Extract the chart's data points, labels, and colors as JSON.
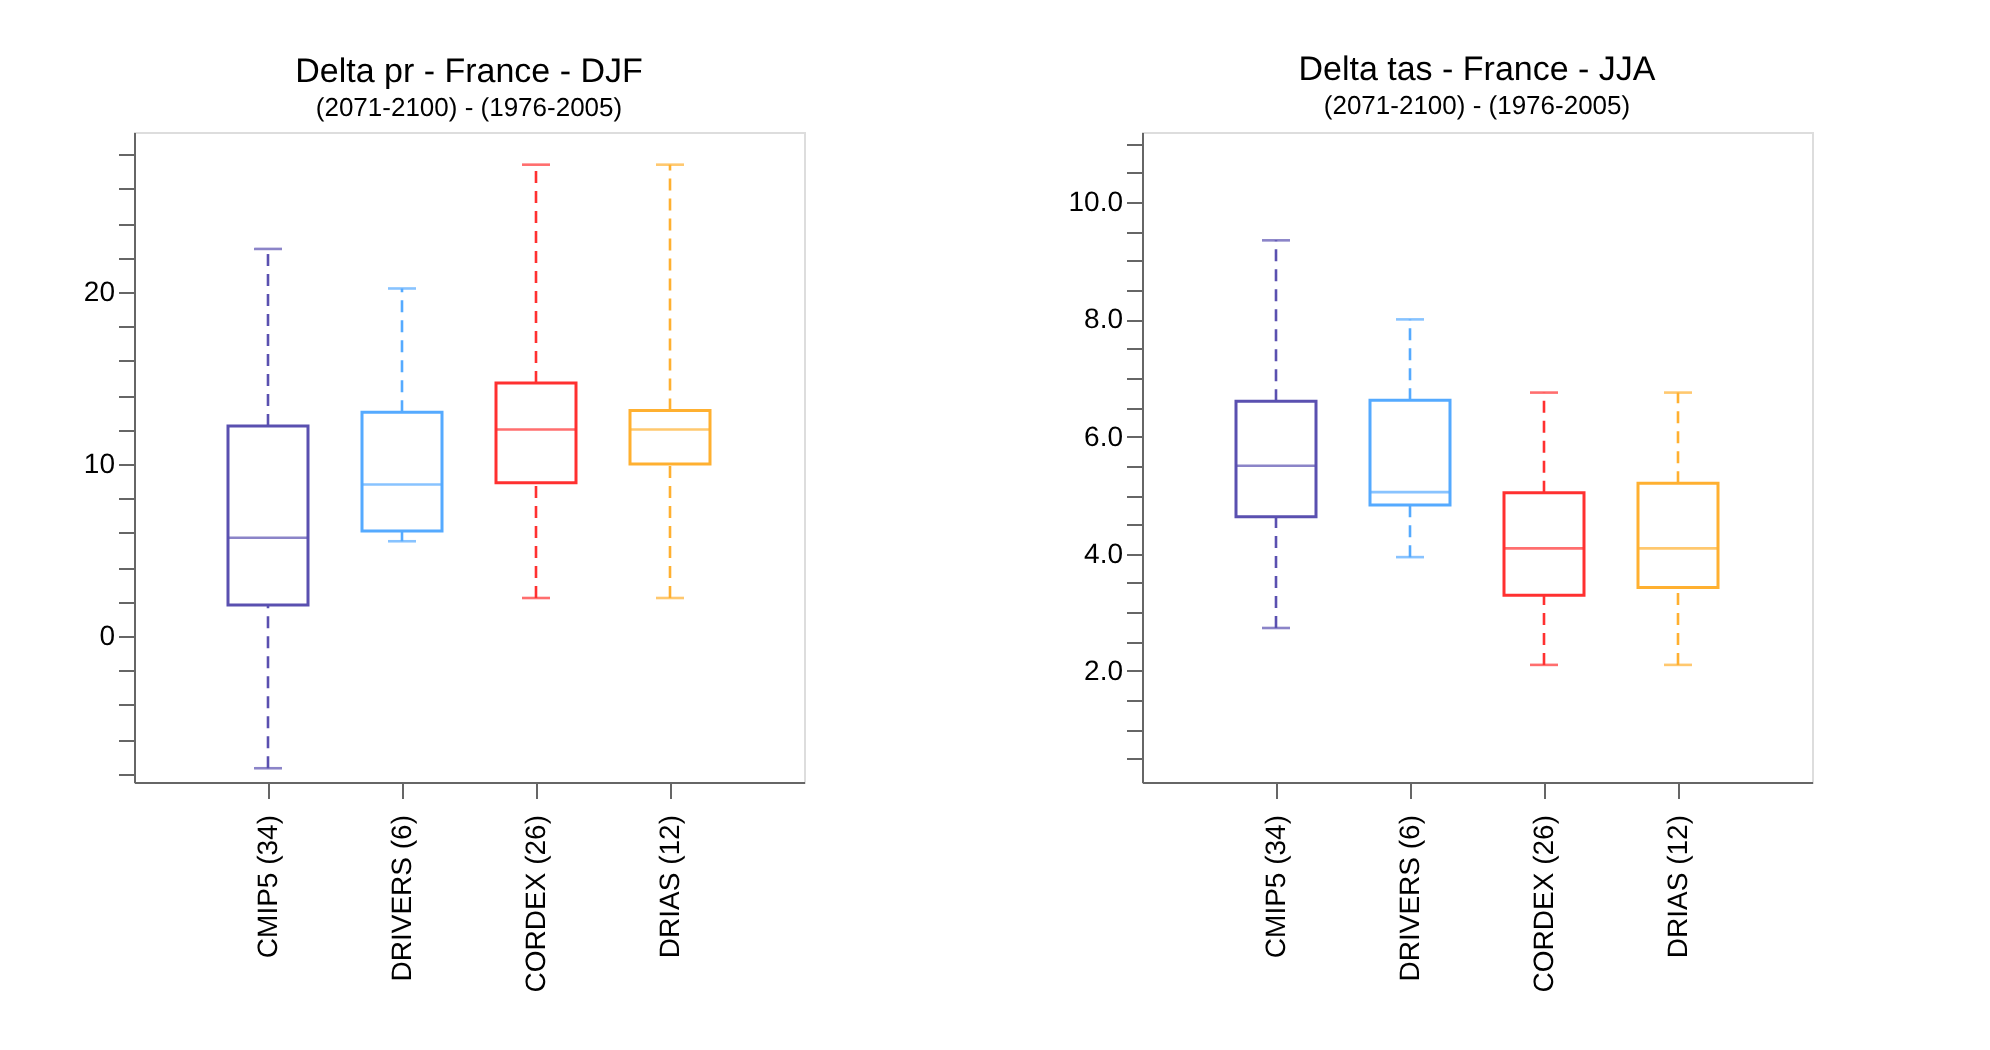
{
  "chart_data": [
    {
      "type": "box",
      "title": "Delta pr - France - DJF",
      "subtitle": "(2071-2100) - (1976-2005)",
      "categories": [
        "CMIP5 (34)",
        "DRIVERS (6)",
        "CORDEX (26)",
        "DRIAS (12)"
      ],
      "colors": [
        "#5a50b0",
        "#55aaff",
        "#ff3030",
        "#ffb030"
      ],
      "boxes": [
        {
          "low": -7.7,
          "q1": 1.8,
          "median": 5.7,
          "q3": 12.2,
          "high": 22.5
        },
        {
          "low": 5.5,
          "q1": 6.1,
          "median": 8.8,
          "q3": 13.0,
          "high": 20.2
        },
        {
          "low": 2.2,
          "q1": 8.9,
          "median": 12.0,
          "q3": 14.7,
          "high": 27.4
        },
        {
          "low": 2.2,
          "q1": 10.0,
          "median": 12.0,
          "q3": 13.1,
          "high": 27.4
        }
      ],
      "line_style": "dashed",
      "grid": false,
      "legend": false,
      "ylim": [
        -8.5,
        29.3
      ],
      "yticks": [
        {
          "value": -8,
          "label": null
        },
        {
          "value": -6,
          "label": null
        },
        {
          "value": -4,
          "label": null
        },
        {
          "value": -2,
          "label": null
        },
        0,
        {
          "value": 2,
          "label": null
        },
        {
          "value": 4,
          "label": null
        },
        {
          "value": 6,
          "label": null
        },
        {
          "value": 8,
          "label": null
        },
        10,
        {
          "value": 12,
          "label": null
        },
        {
          "value": 14,
          "label": null
        },
        {
          "value": 16,
          "label": null
        },
        {
          "value": 18,
          "label": null
        },
        20,
        {
          "value": 22,
          "label": null
        },
        {
          "value": 24,
          "label": null
        },
        {
          "value": 26,
          "label": null
        },
        {
          "value": 28,
          "label": null
        }
      ]
    },
    {
      "type": "box",
      "title": "Delta tas - France - JJA",
      "subtitle": "(2071-2100) - (1976-2005)",
      "categories": [
        "CMIP5 (34)",
        "DRIVERS (6)",
        "CORDEX (26)",
        "DRIAS (12)"
      ],
      "colors": [
        "#5a50b0",
        "#55aaff",
        "#ff3030",
        "#ffb030"
      ],
      "boxes": [
        {
          "low": 2.73,
          "q1": 4.63,
          "median": 5.5,
          "q3": 6.6,
          "high": 9.35
        },
        {
          "low": 3.94,
          "q1": 4.83,
          "median": 5.05,
          "q3": 6.62,
          "high": 8.0
        },
        {
          "low": 2.1,
          "q1": 3.29,
          "median": 4.09,
          "q3": 5.04,
          "high": 6.75
        },
        {
          "low": 2.1,
          "q1": 3.42,
          "median": 4.09,
          "q3": 5.2,
          "high": 6.75
        }
      ],
      "line_style": "dashed",
      "grid": false,
      "legend": false,
      "ylim": [
        0.1,
        11.2
      ],
      "yticks": [
        {
          "value": 0.5,
          "label": null
        },
        {
          "value": 1,
          "label": null
        },
        {
          "value": 1.5,
          "label": null
        },
        {
          "value": 2,
          "label": "2.0"
        },
        {
          "value": 2.5,
          "label": null
        },
        {
          "value": 3,
          "label": null
        },
        {
          "value": 3.5,
          "label": null
        },
        {
          "value": 4,
          "label": "4.0"
        },
        {
          "value": 4.5,
          "label": null
        },
        {
          "value": 5,
          "label": null
        },
        {
          "value": 5.5,
          "label": null
        },
        {
          "value": 6,
          "label": "6.0"
        },
        {
          "value": 6.5,
          "label": null
        },
        {
          "value": 7,
          "label": null
        },
        {
          "value": 7.5,
          "label": null
        },
        {
          "value": 8,
          "label": "8.0"
        },
        {
          "value": 8.5,
          "label": null
        },
        {
          "value": 9,
          "label": null
        },
        {
          "value": 9.5,
          "label": null
        },
        {
          "value": 10,
          "label": "10.0"
        },
        {
          "value": 10.5,
          "label": null
        },
        {
          "value": 11,
          "label": null
        }
      ]
    }
  ]
}
